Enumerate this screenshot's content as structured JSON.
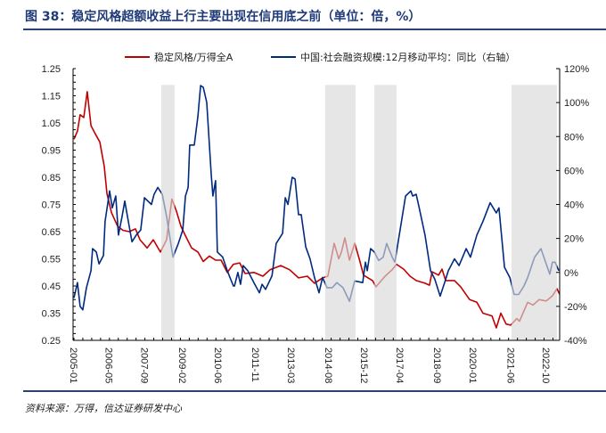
{
  "title": "图 38：稳定风格超额收益上行主要出现在信用底之前（单位：倍，%）",
  "source": "资料来源：万得，信达证券研发中心",
  "colors": {
    "title": "#1f3a78",
    "red": "#c00000",
    "blue": "#002a7f",
    "band": "#d9d9d9"
  },
  "chart_data": {
    "type": "line",
    "title": "稳定风格超额收益上行主要出现在信用底之前（单位：倍，%）",
    "xlim": [
      2005.0,
      2023.25
    ],
    "ylim_left": [
      0.25,
      1.25
    ],
    "ylim_right": [
      -40,
      120
    ],
    "grid": false,
    "legend": "top-center",
    "left_ticks": [
      "1.25",
      "1.15",
      "1.05",
      "0.95",
      "0.85",
      "0.75",
      "0.65",
      "0.55",
      "0.45",
      "0.35",
      "0.25"
    ],
    "right_ticks": [
      "120%",
      "100%",
      "80%",
      "60%",
      "40%",
      "20%",
      "0%",
      "-20%",
      "-40%"
    ],
    "x_ticks": [
      {
        "label": "2005-01",
        "t": 2005.0
      },
      {
        "label": "2006-05",
        "t": 2006.33
      },
      {
        "label": "2007-09",
        "t": 2007.67
      },
      {
        "label": "2009-02",
        "t": 2009.08
      },
      {
        "label": "2010-06",
        "t": 2010.42
      },
      {
        "label": "2011-11",
        "t": 2011.83
      },
      {
        "label": "2013-03",
        "t": 2013.17
      },
      {
        "label": "2014-08",
        "t": 2014.58
      },
      {
        "label": "2015-12",
        "t": 2015.92
      },
      {
        "label": "2017-04",
        "t": 2017.25
      },
      {
        "label": "2018-09",
        "t": 2018.67
      },
      {
        "label": "2020-01",
        "t": 2020.0
      },
      {
        "label": "2021-06",
        "t": 2021.42
      },
      {
        "label": "2022-10",
        "t": 2022.75
      }
    ],
    "shaded_periods": [
      [
        2008.28,
        2008.78
      ],
      [
        2014.44,
        2015.58
      ],
      [
        2016.29,
        2017.12
      ],
      [
        2021.44,
        2023.15
      ]
    ],
    "series": [
      {
        "name": "稳定风格/万得全A",
        "axis": "left",
        "color": "#c00000",
        "points": [
          [
            2005.0,
            0.99
          ],
          [
            2005.13,
            1.02
          ],
          [
            2005.23,
            1.08
          ],
          [
            2005.37,
            1.07
          ],
          [
            2005.5,
            1.165
          ],
          [
            2005.64,
            1.04
          ],
          [
            2005.8,
            1.01
          ],
          [
            2005.97,
            0.98
          ],
          [
            2006.14,
            0.89
          ],
          [
            2006.24,
            0.79
          ],
          [
            2006.41,
            0.72
          ],
          [
            2006.64,
            0.67
          ],
          [
            2006.84,
            0.655
          ],
          [
            2007.08,
            0.65
          ],
          [
            2007.31,
            0.66
          ],
          [
            2007.48,
            0.62
          ],
          [
            2007.75,
            0.59
          ],
          [
            2007.98,
            0.62
          ],
          [
            2008.25,
            0.575
          ],
          [
            2008.48,
            0.62
          ],
          [
            2008.68,
            0.77
          ],
          [
            2008.85,
            0.725
          ],
          [
            2009.02,
            0.67
          ],
          [
            2009.19,
            0.635
          ],
          [
            2009.42,
            0.59
          ],
          [
            2009.66,
            0.575
          ],
          [
            2009.86,
            0.54
          ],
          [
            2010.09,
            0.56
          ],
          [
            2010.32,
            0.545
          ],
          [
            2010.53,
            0.545
          ],
          [
            2010.76,
            0.5
          ],
          [
            2010.99,
            0.53
          ],
          [
            2011.23,
            0.535
          ],
          [
            2011.43,
            0.496
          ],
          [
            2011.76,
            0.5
          ],
          [
            2012.1,
            0.486
          ],
          [
            2012.37,
            0.51
          ],
          [
            2012.77,
            0.525
          ],
          [
            2013.1,
            0.51
          ],
          [
            2013.44,
            0.48
          ],
          [
            2013.77,
            0.486
          ],
          [
            2014.04,
            0.46
          ],
          [
            2014.34,
            0.48
          ],
          [
            2014.54,
            0.486
          ],
          [
            2014.78,
            0.607
          ],
          [
            2014.95,
            0.55
          ],
          [
            2015.05,
            0.575
          ],
          [
            2015.18,
            0.627
          ],
          [
            2015.35,
            0.545
          ],
          [
            2015.55,
            0.607
          ],
          [
            2015.72,
            0.55
          ],
          [
            2015.88,
            0.49
          ],
          [
            2016.22,
            0.47
          ],
          [
            2016.35,
            0.447
          ],
          [
            2016.69,
            0.486
          ],
          [
            2016.96,
            0.51
          ],
          [
            2017.12,
            0.53
          ],
          [
            2017.39,
            0.512
          ],
          [
            2017.63,
            0.486
          ],
          [
            2017.86,
            0.47
          ],
          [
            2018.19,
            0.46
          ],
          [
            2018.36,
            0.453
          ],
          [
            2018.46,
            0.502
          ],
          [
            2018.7,
            0.49
          ],
          [
            2018.83,
            0.512
          ],
          [
            2018.97,
            0.47
          ],
          [
            2019.3,
            0.47
          ],
          [
            2019.53,
            0.447
          ],
          [
            2019.87,
            0.4
          ],
          [
            2020.14,
            0.39
          ],
          [
            2020.37,
            0.35
          ],
          [
            2020.71,
            0.34
          ],
          [
            2020.87,
            0.296
          ],
          [
            2021.04,
            0.35
          ],
          [
            2021.24,
            0.31
          ],
          [
            2021.41,
            0.306
          ],
          [
            2021.64,
            0.33
          ],
          [
            2021.74,
            0.32
          ],
          [
            2022.05,
            0.39
          ],
          [
            2022.25,
            0.38
          ],
          [
            2022.48,
            0.4
          ],
          [
            2022.75,
            0.395
          ],
          [
            2022.98,
            0.414
          ],
          [
            2023.15,
            0.44
          ],
          [
            2023.25,
            0.42
          ]
        ]
      },
      {
        "name": "中国:社会融资规模:12月移动平均：同比（右轴）",
        "axis": "right",
        "color": "#002a7f",
        "points": [
          [
            2005.0,
            -15
          ],
          [
            2005.13,
            -6
          ],
          [
            2005.23,
            -20
          ],
          [
            2005.33,
            -22
          ],
          [
            2005.47,
            -9
          ],
          [
            2005.64,
            1
          ],
          [
            2005.7,
            14
          ],
          [
            2005.84,
            12
          ],
          [
            2005.94,
            5
          ],
          [
            2006.11,
            10
          ],
          [
            2006.17,
            30
          ],
          [
            2006.34,
            48
          ],
          [
            2006.44,
            38
          ],
          [
            2006.57,
            45
          ],
          [
            2006.67,
            22
          ],
          [
            2006.81,
            33
          ],
          [
            2006.91,
            42
          ],
          [
            2007.01,
            33
          ],
          [
            2007.18,
            18
          ],
          [
            2007.34,
            22
          ],
          [
            2007.51,
            25
          ],
          [
            2007.65,
            44
          ],
          [
            2007.91,
            40
          ],
          [
            2008.01,
            46
          ],
          [
            2008.15,
            50
          ],
          [
            2008.32,
            46
          ],
          [
            2008.48,
            33
          ],
          [
            2008.72,
            9
          ],
          [
            2008.92,
            17
          ],
          [
            2009.09,
            25
          ],
          [
            2009.19,
            45
          ],
          [
            2009.29,
            50
          ],
          [
            2009.35,
            75
          ],
          [
            2009.52,
            75
          ],
          [
            2009.66,
            92
          ],
          [
            2009.76,
            110
          ],
          [
            2009.86,
            109
          ],
          [
            2009.99,
            100
          ],
          [
            2010.16,
            57
          ],
          [
            2010.22,
            45
          ],
          [
            2010.32,
            54
          ],
          [
            2010.39,
            12
          ],
          [
            2010.59,
            9
          ],
          [
            2010.76,
            1
          ],
          [
            2010.99,
            -8
          ],
          [
            2011.03,
            -8
          ],
          [
            2011.16,
            0
          ],
          [
            2011.26,
            -7
          ],
          [
            2011.36,
            4
          ],
          [
            2011.53,
            1
          ],
          [
            2011.76,
            -6
          ],
          [
            2011.97,
            -12
          ],
          [
            2012.07,
            -7
          ],
          [
            2012.2,
            -10
          ],
          [
            2012.44,
            -2
          ],
          [
            2012.6,
            17
          ],
          [
            2012.84,
            23
          ],
          [
            2012.94,
            44
          ],
          [
            2013.04,
            40
          ],
          [
            2013.2,
            56
          ],
          [
            2013.31,
            55
          ],
          [
            2013.44,
            34
          ],
          [
            2013.54,
            34
          ],
          [
            2013.71,
            15
          ],
          [
            2013.87,
            8
          ],
          [
            2014.04,
            -3
          ],
          [
            2014.21,
            -12
          ],
          [
            2014.34,
            -3
          ],
          [
            2014.51,
            -9
          ],
          [
            2014.71,
            -9
          ],
          [
            2014.88,
            -6
          ],
          [
            2015.11,
            -9
          ],
          [
            2015.35,
            -17
          ],
          [
            2015.55,
            -5
          ],
          [
            2015.85,
            -6
          ],
          [
            2015.95,
            6
          ],
          [
            2016.02,
            1
          ],
          [
            2016.15,
            14
          ],
          [
            2016.29,
            12
          ],
          [
            2016.45,
            7
          ],
          [
            2016.62,
            9
          ],
          [
            2016.75,
            17
          ],
          [
            2016.96,
            9
          ],
          [
            2017.06,
            6
          ],
          [
            2017.46,
            45
          ],
          [
            2017.66,
            48
          ],
          [
            2017.73,
            45
          ],
          [
            2017.86,
            46
          ],
          [
            2017.96,
            39
          ],
          [
            2018.19,
            22
          ],
          [
            2018.4,
            1
          ],
          [
            2018.56,
            -4
          ],
          [
            2018.76,
            -14
          ],
          [
            2018.93,
            -6
          ],
          [
            2019.07,
            1
          ],
          [
            2019.3,
            8
          ],
          [
            2019.47,
            4
          ],
          [
            2019.74,
            14
          ],
          [
            2019.9,
            9
          ],
          [
            2020.14,
            22
          ],
          [
            2020.37,
            30
          ],
          [
            2020.64,
            41
          ],
          [
            2020.87,
            35
          ],
          [
            2020.97,
            38
          ],
          [
            2021.18,
            3
          ],
          [
            2021.38,
            -3
          ],
          [
            2021.54,
            -13
          ],
          [
            2021.71,
            -13
          ],
          [
            2021.91,
            -8
          ],
          [
            2022.05,
            -3
          ],
          [
            2022.31,
            9
          ],
          [
            2022.55,
            14
          ],
          [
            2022.88,
            -1
          ],
          [
            2022.98,
            6
          ],
          [
            2023.08,
            6
          ],
          [
            2023.22,
            1
          ]
        ]
      }
    ]
  }
}
